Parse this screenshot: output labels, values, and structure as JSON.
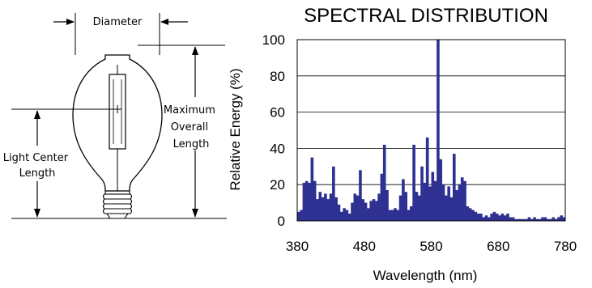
{
  "lamp_diagram": {
    "diameter_label": "Diameter",
    "max_length_label_lines": [
      "Maximum",
      "Overall",
      "Length"
    ],
    "light_center_label_lines": [
      "Light Center",
      "Length"
    ]
  },
  "chart_data": {
    "type": "bar",
    "title": "SPECTRAL DISTRIBUTION",
    "xlabel": "Wavelength (nm)",
    "ylabel": "Relative Energy (%)",
    "xlim": [
      380,
      780
    ],
    "ylim": [
      0,
      100
    ],
    "xticks": [
      380,
      480,
      580,
      680,
      780
    ],
    "yticks": [
      0,
      20,
      40,
      60,
      80,
      100
    ],
    "grid": true,
    "bar_color": "#2e3192",
    "bin_width": 4,
    "x": [
      380,
      384,
      388,
      392,
      396,
      400,
      404,
      408,
      412,
      416,
      420,
      424,
      428,
      432,
      436,
      440,
      444,
      448,
      452,
      456,
      460,
      464,
      468,
      472,
      476,
      480,
      484,
      488,
      492,
      496,
      500,
      504,
      508,
      512,
      516,
      520,
      524,
      528,
      532,
      536,
      540,
      544,
      548,
      552,
      556,
      560,
      564,
      568,
      572,
      576,
      580,
      584,
      588,
      592,
      596,
      600,
      604,
      608,
      612,
      616,
      620,
      624,
      628,
      632,
      636,
      640,
      644,
      648,
      652,
      656,
      660,
      664,
      668,
      672,
      676,
      680,
      684,
      688,
      692,
      696,
      700,
      704,
      708,
      712,
      716,
      720,
      724,
      728,
      732,
      736,
      740,
      744,
      748,
      752,
      756,
      760,
      764,
      768,
      772,
      776
    ],
    "values": [
      5,
      6,
      21,
      22,
      21,
      35,
      22,
      12,
      16,
      13,
      15,
      12,
      15,
      30,
      13,
      9,
      5,
      7,
      6,
      4,
      10,
      15,
      14,
      28,
      12,
      10,
      7,
      11,
      12,
      11,
      15,
      26,
      42,
      17,
      6,
      6,
      7,
      6,
      14,
      23,
      16,
      6,
      8,
      42,
      16,
      14,
      30,
      21,
      46,
      19,
      27,
      22,
      100,
      34,
      20,
      14,
      19,
      13,
      37,
      17,
      20,
      24,
      22,
      8,
      7,
      6,
      5,
      4,
      4,
      2,
      3,
      2,
      4,
      5,
      4,
      3,
      4,
      3,
      4,
      2,
      2,
      1,
      1,
      1,
      1,
      1,
      2,
      1,
      2,
      1,
      1,
      2,
      2,
      1,
      1,
      2,
      1,
      2,
      3,
      2
    ]
  }
}
